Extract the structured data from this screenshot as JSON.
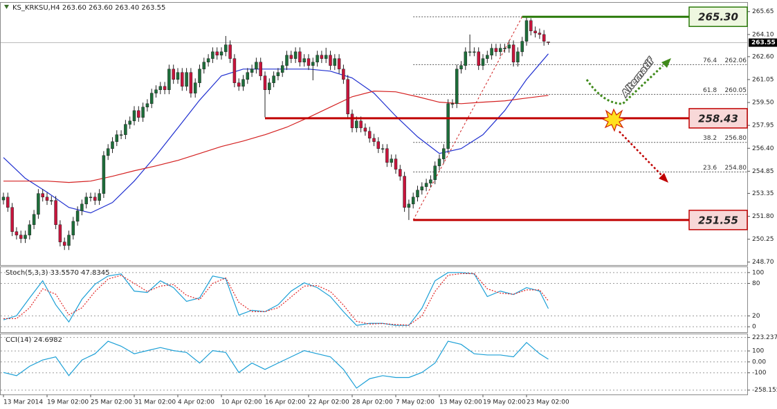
{
  "chart_data": [
    {
      "type": "candlestick",
      "title": "KS_KRKSU,H4  263.60 263.60 263.40 263.55",
      "categories": [
        "13 Mar 2014",
        null,
        null,
        null,
        null,
        null,
        null,
        null,
        null,
        null,
        "19 Mar 02:00",
        null,
        null,
        null,
        null,
        null,
        null,
        null,
        null,
        null,
        "25 Mar 02:00",
        null,
        null,
        null,
        null,
        null,
        null,
        null,
        null,
        null,
        "31 Mar 02:00",
        null,
        null,
        null,
        null,
        null,
        null,
        null,
        null,
        null,
        "4 Apr 02:00",
        null,
        null,
        null,
        null,
        null,
        null,
        null,
        null,
        null,
        "10 Apr 02:00",
        null,
        null,
        null,
        null,
        null,
        null,
        null,
        null,
        null,
        "16 Apr 02:00",
        null,
        null,
        null,
        null,
        null,
        null,
        null,
        null,
        null,
        "22 Apr 02:00",
        null,
        null,
        null,
        null,
        null,
        null,
        null,
        null,
        null,
        "28 Apr 02:00",
        null,
        null,
        null,
        null,
        null,
        null,
        null,
        null,
        null,
        "7 May 02:00",
        null,
        null,
        null,
        null,
        null,
        null,
        null,
        null,
        null,
        "13 May 02:00",
        null,
        null,
        null,
        null,
        null,
        null,
        null,
        null,
        null,
        "19 May 02:00",
        null,
        null,
        null,
        null,
        null,
        null,
        null,
        null,
        null,
        "23 May 02:00",
        null,
        null,
        null,
        null,
        null
      ],
      "open": [
        252.9,
        253.1,
        252.4,
        250.76,
        250.53,
        250.29,
        250.53,
        251.23,
        251.93,
        253.34,
        253.1,
        252.87,
        252.87,
        251.23,
        250.06,
        249.82,
        250.53,
        251.46,
        252.17,
        252.63,
        253.1,
        253.1,
        252.87,
        253.34,
        255.91,
        256.38,
        256.85,
        257.32,
        257.32,
        258.02,
        258.25,
        258.95,
        258.49,
        259.19,
        259.42,
        260.13,
        260.36,
        260.59,
        260.36,
        261.76,
        261.06,
        261.53,
        260.59,
        261.53,
        260.13,
        260.83,
        261.76,
        262.23,
        262.47,
        262.93,
        262.7,
        262.93,
        263.4,
        262.47,
        260.83,
        260.59,
        261.06,
        261.53,
        261.76,
        262.23,
        261.3,
        260.36,
        260.83,
        261.3,
        261.53,
        262,
        262.7,
        262.47,
        262.93,
        262.23,
        262.47,
        262,
        262.23,
        262.7,
        262.47,
        262.7,
        262,
        262.47,
        261.76,
        261.06,
        258.72,
        257.78,
        258.25,
        257.78,
        257.55,
        257.08,
        256.85,
        256.38,
        256.38,
        255.44,
        255.68,
        254.98,
        254.51,
        252.4,
        252.63,
        253.1,
        253.57,
        253.8,
        254.04,
        254.27,
        255.21,
        255.68,
        256.38,
        259.42,
        259.42,
        261.76,
        262,
        262.93,
        262.93,
        262.93,
        262,
        262.47,
        262.7,
        263.17,
        262.93,
        263.17,
        263.17,
        263.4,
        262.23,
        262.93,
        263.64,
        265.04,
        264.34,
        264.2,
        264.1,
        263.6
      ],
      "high": [
        253.4,
        253.4,
        252.7,
        251.06,
        250.83,
        250.83,
        251.53,
        252.23,
        253.64,
        253.64,
        253.4,
        253.17,
        253.17,
        251.53,
        250.36,
        250.83,
        251.76,
        252.47,
        252.93,
        253.4,
        253.4,
        253.4,
        253.64,
        256.21,
        256.68,
        257.15,
        257.62,
        257.62,
        258.32,
        258.55,
        259.25,
        259.25,
        259.49,
        259.72,
        260.43,
        260.66,
        260.89,
        260.89,
        262.06,
        262.06,
        261.83,
        261.83,
        261.83,
        261.83,
        261.13,
        262.06,
        262.53,
        262.77,
        263.23,
        263.23,
        263.23,
        264,
        263.7,
        262.77,
        261.13,
        261.36,
        261.83,
        262.06,
        262.53,
        262.53,
        261.6,
        261.13,
        261.6,
        261.83,
        262.3,
        263,
        263,
        263.23,
        263.23,
        262.77,
        262.77,
        262.53,
        263,
        263,
        263.2,
        263,
        262.77,
        262.77,
        262.06,
        261.36,
        259.02,
        258.55,
        258.55,
        258.08,
        257.85,
        257.38,
        257.15,
        256.68,
        256.68,
        255.98,
        255.98,
        255.28,
        254.81,
        252.93,
        253.4,
        253.87,
        254.1,
        254.34,
        254.57,
        255.51,
        255.98,
        256.68,
        259.72,
        259.72,
        262.06,
        262.3,
        263.23,
        264.1,
        263.23,
        263.23,
        262.77,
        263,
        263.47,
        263.47,
        263.47,
        263.47,
        263.7,
        263.7,
        263.23,
        263.94,
        265.3,
        265.2,
        264.64,
        264.5,
        264.4,
        263.6
      ],
      "low": [
        252.6,
        252.1,
        250.46,
        250.23,
        249.99,
        249.99,
        250.23,
        250.93,
        251.63,
        252.8,
        252.57,
        252.57,
        250.93,
        249.76,
        249.52,
        249.52,
        250.23,
        251.16,
        251.87,
        252.33,
        252.8,
        252.57,
        252.57,
        253.04,
        255.61,
        256.08,
        256.55,
        257.02,
        257.02,
        257.72,
        257.95,
        258.19,
        258.19,
        258.89,
        259.12,
        259.83,
        260.06,
        260.06,
        260.06,
        260.76,
        260.76,
        260.29,
        260.29,
        259.83,
        259.83,
        260.53,
        261.46,
        261.93,
        262.17,
        262.4,
        262.4,
        262.63,
        262.17,
        260.53,
        260.29,
        260.29,
        260.76,
        261.23,
        261.46,
        261,
        258.5,
        260.06,
        260.53,
        261,
        261.23,
        261.7,
        262.17,
        262.17,
        261.93,
        261.93,
        261.7,
        261,
        261.93,
        262.17,
        262.17,
        261.7,
        261.7,
        261.46,
        260.76,
        258.42,
        257.48,
        257.48,
        257.48,
        257.25,
        256.78,
        256.55,
        256.08,
        256.08,
        255.14,
        255.14,
        254.68,
        254.21,
        252.1,
        251.55,
        252.33,
        252.8,
        253.27,
        253.5,
        253.74,
        253.97,
        254.91,
        255.38,
        256.08,
        259.12,
        259.12,
        261.46,
        261.7,
        262.63,
        262.63,
        261.7,
        261.7,
        262.17,
        262.4,
        262.63,
        262.63,
        262.87,
        262.87,
        261.93,
        261.93,
        262.63,
        263.34,
        264.04,
        263.9,
        263.8,
        263.34,
        263.4
      ],
      "close": [
        253.1,
        252.4,
        250.76,
        250.53,
        250.29,
        250.53,
        251.23,
        251.93,
        253.34,
        253.1,
        252.87,
        252.87,
        251.23,
        250.06,
        249.82,
        250.53,
        251.46,
        252.17,
        252.63,
        253.1,
        253.1,
        252.87,
        253.34,
        255.91,
        256.38,
        256.85,
        257.32,
        257.32,
        258.02,
        258.25,
        258.95,
        258.49,
        259.19,
        259.42,
        260.13,
        260.36,
        260.59,
        260.36,
        261.76,
        261.06,
        261.53,
        260.59,
        261.53,
        260.13,
        260.83,
        261.76,
        262.23,
        262.47,
        262.93,
        262.7,
        262.93,
        263.4,
        262.47,
        260.83,
        260.59,
        261.06,
        261.53,
        261.76,
        262.23,
        261.3,
        260.36,
        260.83,
        261.3,
        261.53,
        262,
        262.7,
        262.47,
        262.93,
        262.23,
        262.47,
        262,
        262.23,
        262.7,
        262.47,
        262.7,
        262,
        262.47,
        261.76,
        261.06,
        258.72,
        257.78,
        258.25,
        257.78,
        257.55,
        257.08,
        256.85,
        256.38,
        256.38,
        255.44,
        255.68,
        254.98,
        254.51,
        252.4,
        252.63,
        253.1,
        253.57,
        253.8,
        254.04,
        254.27,
        255.21,
        255.68,
        256.38,
        259.42,
        259.42,
        261.76,
        262,
        262.93,
        262.93,
        262.93,
        262,
        262.47,
        262.7,
        263.17,
        262.93,
        263.17,
        263.17,
        263.4,
        262.23,
        262.93,
        263.64,
        265.04,
        264.34,
        264.2,
        264.1,
        263.64,
        263.55
      ],
      "up_color": "#1d6e3a",
      "down_color": "#c8143c",
      "wick_color": "#222222",
      "series": [
        {
          "color": "#1f2fd0",
          "x": [
            0,
            5,
            10,
            15,
            20,
            25,
            30,
            35,
            40,
            45,
            50,
            55,
            60,
            65,
            70,
            75,
            80,
            85,
            90,
            95,
            100,
            105,
            110,
            115,
            120,
            125
          ],
          "values": [
            255.77,
            254.37,
            253.43,
            252.4,
            252.03,
            252.73,
            254.18,
            255.91,
            257.78,
            259.66,
            261.3,
            261.76,
            261.76,
            261.76,
            261.76,
            261.62,
            261.16,
            260.13,
            258.58,
            257.18,
            256.05,
            256.38,
            257.32,
            258.95,
            261.06,
            262.79
          ]
        },
        {
          "color": "#d42020",
          "x": [
            0,
            5,
            10,
            15,
            20,
            25,
            30,
            35,
            40,
            45,
            50,
            55,
            60,
            65,
            70,
            75,
            80,
            85,
            90,
            95,
            100,
            105,
            110,
            115,
            120,
            125
          ],
          "values": [
            254.18,
            254.18,
            254.18,
            254.09,
            254.18,
            254.51,
            254.88,
            255.21,
            255.58,
            256.05,
            256.52,
            256.89,
            257.32,
            257.83,
            258.49,
            259.19,
            259.89,
            260.27,
            260.22,
            259.89,
            259.52,
            259.42,
            259.52,
            259.61,
            259.8,
            259.98
          ]
        }
      ],
      "levels": [
        {
          "value": 265.3,
          "label": "265.30",
          "color": "#2a7a0a",
          "fill": "#eef7e0",
          "x_start": 119
        },
        {
          "value": 258.43,
          "color": "#c00000",
          "fill": "#f8d8d8",
          "x_start": 60
        },
        {
          "value": 251.55,
          "color": "#c00000",
          "fill": "#f8d8d8",
          "x_start": 94
        }
      ],
      "fib": {
        "x_start": 94,
        "levels": [
          {
            "ratio": 76.4,
            "value": 262.06
          },
          {
            "ratio": 61.8,
            "value": 260.05
          },
          {
            "ratio": 38.2,
            "value": 256.8,
            "label": "256.80"
          },
          {
            "ratio": 23.6,
            "value": 254.8,
            "label": "254.80"
          }
        ]
      },
      "current": 263.55,
      "annotations": [
        "Alternatif"
      ],
      "ylim": [
        248.5,
        266.2
      ],
      "yticks": [
        265.65,
        {
          "value": 264.1,
          "label": "264.10"
        },
        {
          "value": 262.6,
          "label": "262.60"
        },
        261.05,
        {
          "value": 259.5,
          "label": "259.50"
        },
        257.95,
        {
          "value": 256.4,
          "label": "256.40"
        },
        254.85,
        253.35,
        {
          "value": 251.8,
          "label": "251.80"
        },
        250.25,
        {
          "value": 248.7,
          "label": "248.70"
        }
      ],
      "grid": false
    },
    {
      "type": "line",
      "title": "Stoch(5,3,3) 33.5570 47.8345",
      "x": [
        0,
        3,
        6,
        9,
        12,
        15,
        18,
        21,
        24,
        27,
        30,
        33,
        36,
        39,
        42,
        45,
        48,
        51,
        54,
        57,
        60,
        63,
        66,
        69,
        72,
        75,
        78,
        81,
        84,
        87,
        90,
        93,
        96,
        99,
        102,
        105,
        108,
        111,
        114,
        117,
        120,
        123,
        125
      ],
      "series": [
        {
          "color": "#1a9fd6",
          "line_style": "solid",
          "values": [
            12.7,
            20.3,
            53.2,
            84.8,
            40.5,
            8.9,
            50.6,
            78.5,
            93.7,
            97.5,
            65.8,
            63.3,
            84.8,
            72.2,
            46.8,
            53.2,
            93.7,
            88.6,
            21.5,
            30.4,
            27.8,
            40.5,
            65.8,
            81,
            72.2,
            55.7,
            27.8,
            2.5,
            6.3,
            6.3,
            2.5,
            2.5,
            34.2,
            84.8,
            100,
            100,
            97.5,
            55.7,
            65.8,
            59.5,
            72.2,
            65.8,
            33.6
          ]
        },
        {
          "color": "#e02020",
          "line_style": "dotted",
          "values": [
            15,
            15,
            35,
            70,
            60,
            22,
            35,
            65,
            88,
            95,
            80,
            65,
            75,
            78,
            58,
            50,
            80,
            90,
            45,
            28,
            28,
            35,
            55,
            75,
            76,
            65,
            40,
            10,
            5,
            6,
            4,
            3,
            20,
            65,
            95,
            98,
            98,
            70,
            62,
            60,
            68,
            68,
            47.8
          ]
        }
      ],
      "ylim": [
        -10,
        110
      ],
      "yticks": [
        100,
        80,
        20,
        0
      ],
      "grid": true
    },
    {
      "type": "line",
      "title": "CCI(14) 24.6982",
      "x": [
        0,
        3,
        6,
        9,
        12,
        15,
        18,
        21,
        24,
        27,
        30,
        33,
        36,
        39,
        42,
        45,
        48,
        51,
        54,
        57,
        60,
        63,
        66,
        69,
        72,
        75,
        78,
        81,
        84,
        87,
        90,
        93,
        96,
        99,
        102,
        105,
        108,
        111,
        114,
        117,
        120,
        123,
        125
      ],
      "series": [
        {
          "color": "#1a9fd6",
          "line_style": "solid",
          "values": [
            -97,
            -126,
            -40,
            17,
            46,
            -126,
            17,
            74,
            189,
            143,
            74,
            103,
            131,
            103,
            86,
            -11,
            103,
            86,
            -97,
            -11,
            -69,
            -11,
            46,
            103,
            74,
            46,
            -69,
            -240,
            -154,
            -126,
            -143,
            -143,
            -97,
            -11,
            189,
            160,
            74,
            63,
            63,
            46,
            177,
            74,
            24.7
          ]
        }
      ],
      "ylim": [
        -298,
        246
      ],
      "yticks": [
        223.237,
        100,
        {
          "value": 0,
          "label": "0.00"
        },
        -100,
        -258.155
      ],
      "grid": true
    }
  ]
}
